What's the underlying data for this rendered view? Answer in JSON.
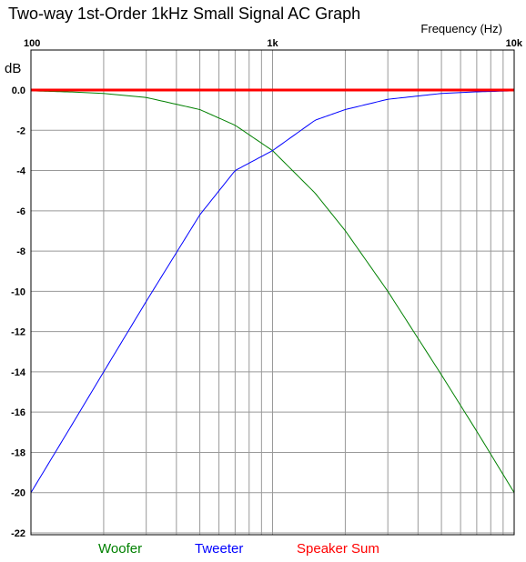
{
  "chart_data": {
    "type": "line",
    "title": "Two-way 1st-Order 1kHz Small Signal AC Graph",
    "xlabel": "Frequency (Hz)",
    "ylabel": "dB",
    "x_scale": "log",
    "xlim": [
      100,
      10000
    ],
    "ylim": [
      -22,
      0
    ],
    "x_ticks": [
      {
        "value": 100,
        "label": "100"
      },
      {
        "value": 1000,
        "label": "1k"
      },
      {
        "value": 10000,
        "label": "10k"
      }
    ],
    "y_ticks": [
      {
        "value": 0,
        "label": "0.0"
      },
      {
        "value": -2,
        "label": "-2"
      },
      {
        "value": -4,
        "label": "-4"
      },
      {
        "value": -6,
        "label": "-6"
      },
      {
        "value": -8,
        "label": "-8"
      },
      {
        "value": -10,
        "label": "-10"
      },
      {
        "value": -12,
        "label": "-12"
      },
      {
        "value": -14,
        "label": "-14"
      },
      {
        "value": -16,
        "label": "-16"
      },
      {
        "value": -18,
        "label": "-18"
      },
      {
        "value": -20,
        "label": "-20"
      },
      {
        "value": -22,
        "label": "-22"
      }
    ],
    "grid": true,
    "legend_position": "bottom",
    "x": [
      100,
      150,
      200,
      300,
      500,
      700,
      1000,
      1500,
      2000,
      3000,
      5000,
      7000,
      10000
    ],
    "series": [
      {
        "name": "Woofer",
        "color": "#008000",
        "values": [
          -0.04,
          -0.1,
          -0.17,
          -0.37,
          -0.97,
          -1.75,
          -3.01,
          -5.12,
          -6.99,
          -10.0,
          -14.15,
          -16.95,
          -20.0
        ]
      },
      {
        "name": "Tweeter",
        "color": "#0000ff",
        "values": [
          -20.0,
          -16.5,
          -14.0,
          -10.5,
          -6.2,
          -4.0,
          -3.01,
          -1.5,
          -0.97,
          -0.46,
          -0.17,
          -0.09,
          -0.04
        ]
      },
      {
        "name": "Speaker Sum",
        "color": "#ff0000",
        "values": [
          0,
          0,
          0,
          0,
          0,
          0,
          0,
          0,
          0,
          0,
          0,
          0,
          0
        ]
      }
    ]
  }
}
